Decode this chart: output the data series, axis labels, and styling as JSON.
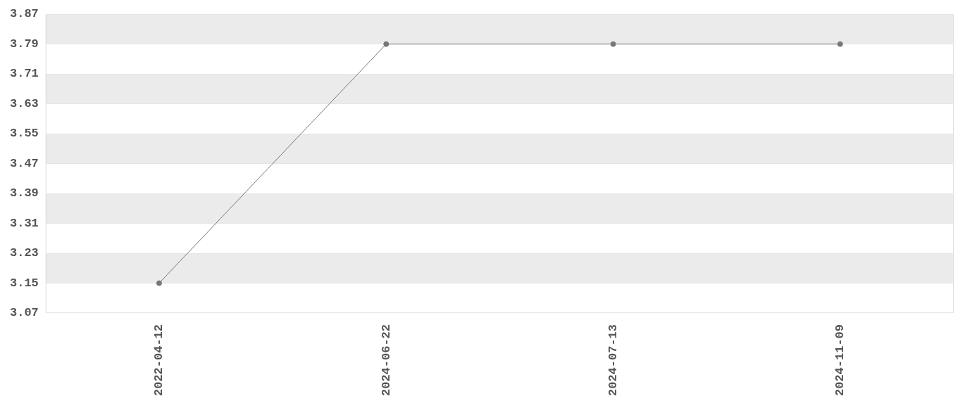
{
  "chart_data": {
    "type": "line",
    "categories": [
      "2022-04-12",
      "2024-06-22",
      "2024-07-13",
      "2024-11-09"
    ],
    "series": [
      {
        "color": "#777777",
        "values": [
          3.15,
          3.79,
          3.79,
          3.79
        ]
      }
    ],
    "ylim": [
      3.07,
      3.87
    ],
    "yticks": [
      3.07,
      3.15,
      3.23,
      3.31,
      3.39,
      3.47,
      3.55,
      3.63,
      3.71,
      3.79,
      3.87
    ],
    "grid": "y",
    "legend": false,
    "marker": "circle",
    "line_style": "solid"
  }
}
